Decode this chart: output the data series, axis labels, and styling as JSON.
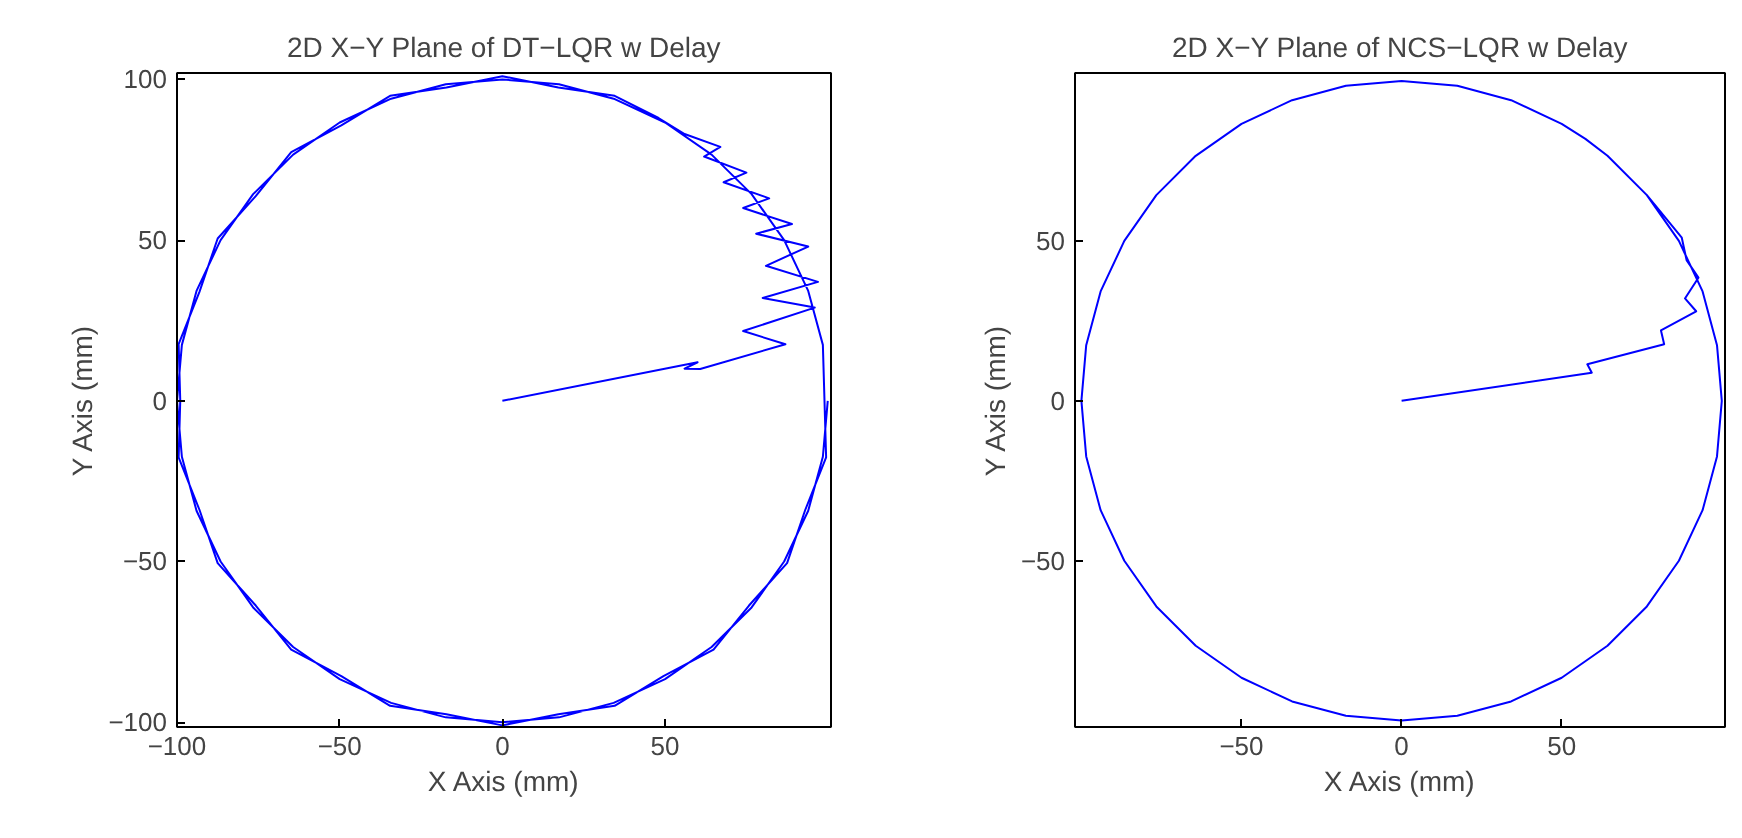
{
  "chart_data": [
    {
      "type": "line",
      "title": "2D X−Y Plane of DT−LQR w Delay",
      "xlabel": "X Axis (mm)",
      "ylabel": "Y Axis (mm)",
      "xlim": [
        -100,
        101
      ],
      "ylim": [
        -101.5,
        102
      ],
      "xticks": [
        -100,
        -50,
        0,
        50
      ],
      "yticks": [
        -100,
        -50,
        0,
        50,
        100
      ],
      "grid": false,
      "series": [
        {
          "color": "#0000ff",
          "x": [
            0,
            60,
            56,
            60.8,
            87,
            74,
            96,
            80,
            97,
            81,
            94,
            78,
            89,
            74,
            82,
            68,
            75,
            62,
            67,
            56,
            48,
            34.5,
            17.2,
            0,
            -17.2,
            -34.5,
            -49.5,
            -64.9,
            -75.8,
            -87.5,
            -93.1,
            -99.5,
            -99,
            -99.5,
            -93.1,
            -87.5,
            -75.8,
            -64.9,
            -49.5,
            -34.5,
            -17.2,
            0,
            17.2,
            34.5,
            49.5,
            64.9,
            75.8,
            87.5,
            93.1,
            99.5,
            99,
            98.5,
            94,
            86.6,
            76.6,
            64.3,
            50,
            34.2,
            17.4,
            0,
            -17.4,
            -34.2,
            -50,
            -64.3,
            -76.6,
            -86.6,
            -94,
            -98.5,
            -100,
            -98.5,
            -94,
            -86.6,
            -76.6,
            -64.3,
            -50,
            -34.2,
            -17.4,
            0,
            17.4,
            34.2,
            50,
            64.3,
            76.6,
            86.6,
            94,
            98.5,
            100
          ],
          "values": [
            0,
            12,
            10,
            9.9,
            17.6,
            21.7,
            29,
            32,
            37,
            42,
            48,
            52,
            55,
            60,
            63,
            68,
            71,
            76,
            79,
            83,
            88,
            94.9,
            97.5,
            101,
            97.5,
            94.9,
            85.7,
            77.4,
            63.7,
            50.5,
            33.9,
            17.6,
            0,
            -17.6,
            -33.9,
            -50.5,
            -63.7,
            -77.4,
            -85.7,
            -94.9,
            -97.5,
            -101,
            -97.5,
            -94.9,
            -85.7,
            -77.4,
            -63.7,
            -50.5,
            -33.9,
            -17.6,
            0,
            17.4,
            34.2,
            50,
            64.3,
            76.6,
            86.6,
            94,
            98.5,
            100,
            98.5,
            94,
            86.6,
            76.6,
            64.3,
            50,
            34.2,
            17.4,
            0,
            -17.4,
            -34.2,
            -50,
            -64.3,
            -76.6,
            -86.6,
            -94,
            -98.5,
            -100,
            -98.5,
            -94,
            -86.6,
            -76.6,
            -64.3,
            -50,
            -34.2,
            -17.4,
            0
          ]
        }
      ]
    },
    {
      "type": "line",
      "title": "2D X−Y Plane of NCS−LQR w Delay",
      "xlabel": "X Axis (mm)",
      "ylabel": "Y Axis (mm)",
      "xlim": [
        -102,
        101
      ],
      "ylim": [
        -102,
        102.5
      ],
      "xticks": [
        -50,
        0,
        50
      ],
      "yticks": [
        -50,
        0,
        50
      ],
      "grid": false,
      "series": [
        {
          "color": "#0000ff",
          "x": [
            0,
            59.4,
            58,
            82,
            81,
            92,
            88.5,
            92.7,
            89,
            87.5,
            76.6,
            64.3,
            57.4,
            50,
            34.2,
            17.4,
            0,
            -17.4,
            -34.2,
            -50,
            -64.3,
            -76.6,
            -86.6,
            -94,
            -98.5,
            -100,
            -98.5,
            -94,
            -86.6,
            -76.6,
            -64.3,
            -50,
            -34.2,
            -17.4,
            0,
            17.4,
            34.2,
            50,
            64.3,
            76.6,
            86.6,
            94,
            98.5,
            100,
            98.5,
            94,
            86.6,
            76.6
          ],
          "values": [
            0,
            8.8,
            11.4,
            17.7,
            22,
            28,
            32,
            38.5,
            44,
            51,
            64.3,
            76.6,
            81.9,
            86.6,
            94,
            98.5,
            100,
            98.5,
            94,
            86.6,
            76.6,
            64.3,
            50,
            34.2,
            17.4,
            0,
            -17.4,
            -34.2,
            -50,
            -64.3,
            -76.6,
            -86.6,
            -94,
            -98.5,
            -100,
            -98.5,
            -94,
            -86.6,
            -76.6,
            -64.3,
            -50,
            -34.2,
            -17.4,
            0,
            17.4,
            34.2,
            50,
            64.3
          ]
        }
      ]
    }
  ]
}
